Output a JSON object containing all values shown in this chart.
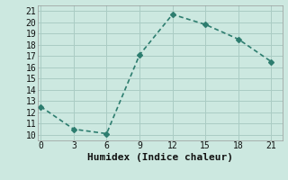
{
  "x": [
    0,
    3,
    6,
    9,
    12,
    15,
    18,
    21
  ],
  "y": [
    12.5,
    10.5,
    10.1,
    17.1,
    20.7,
    19.8,
    18.5,
    16.5
  ],
  "line_color": "#2d7d6f",
  "marker": "D",
  "marker_size": 3,
  "xlabel": "Humidex (Indice chaleur)",
  "xlabel_fontsize": 8,
  "xlim": [
    -0.3,
    22
  ],
  "ylim": [
    9.5,
    21.5
  ],
  "xticks": [
    0,
    3,
    6,
    9,
    12,
    15,
    18,
    21
  ],
  "yticks": [
    10,
    11,
    12,
    13,
    14,
    15,
    16,
    17,
    18,
    19,
    20,
    21
  ],
  "background_color": "#cce8e0",
  "grid_color": "#b8d8d0",
  "tick_fontsize": 7,
  "line_width": 1.2
}
